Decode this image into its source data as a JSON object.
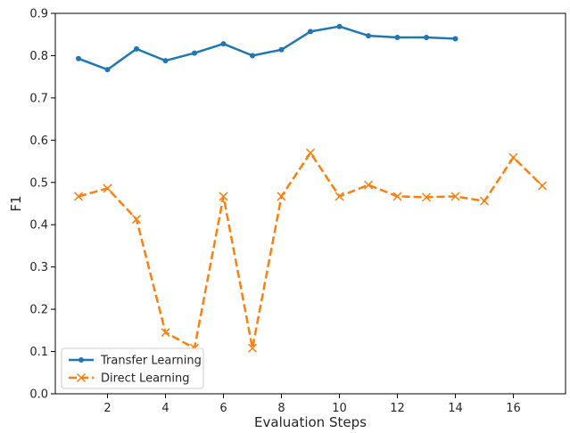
{
  "chart_data": {
    "type": "line",
    "xlabel": "Evaluation Steps",
    "ylabel": "F1",
    "xlim": [
      0.2,
      17.8
    ],
    "ylim": [
      0.0,
      0.9
    ],
    "x_ticks": [
      2,
      4,
      6,
      8,
      10,
      12,
      14,
      16
    ],
    "y_ticks": [
      0.0,
      0.1,
      0.2,
      0.3,
      0.4,
      0.5,
      0.6,
      0.7,
      0.8,
      0.9
    ],
    "x_tick_labels": [
      "2",
      "4",
      "6",
      "8",
      "10",
      "12",
      "14",
      "16"
    ],
    "y_tick_labels": [
      "0.0",
      "0.1",
      "0.2",
      "0.3",
      "0.4",
      "0.5",
      "0.6",
      "0.7",
      "0.8",
      "0.9"
    ],
    "grid": false,
    "legend_position": "bottom-left",
    "series": [
      {
        "name": "Transfer Learning",
        "color": "#1f77b4",
        "line_style": "solid",
        "marker": "dot",
        "x": [
          1,
          2,
          3,
          4,
          5,
          6,
          7,
          8,
          9,
          10,
          11,
          12,
          13,
          14
        ],
        "y": [
          0.793,
          0.767,
          0.816,
          0.788,
          0.806,
          0.828,
          0.8,
          0.814,
          0.857,
          0.869,
          0.847,
          0.843,
          0.843,
          0.84
        ]
      },
      {
        "name": "Direct Learning",
        "color": "#ff7f0e",
        "line_style": "dashed",
        "marker": "x",
        "x": [
          1,
          2,
          3,
          4,
          5,
          6,
          7,
          8,
          9,
          10,
          11,
          12,
          13,
          14,
          15,
          16,
          17
        ],
        "y": [
          0.467,
          0.486,
          0.413,
          0.145,
          0.108,
          0.467,
          0.108,
          0.467,
          0.57,
          0.467,
          0.494,
          0.467,
          0.465,
          0.467,
          0.456,
          0.559,
          0.492
        ]
      }
    ]
  }
}
